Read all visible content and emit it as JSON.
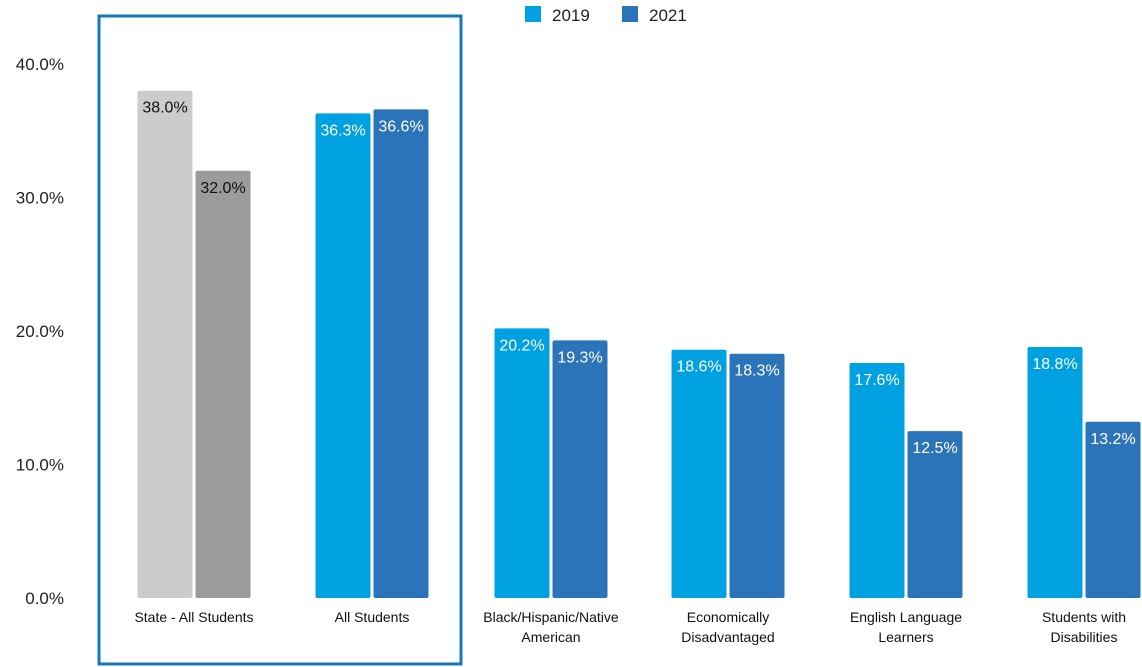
{
  "chart_data": {
    "type": "bar",
    "categories": [
      [
        "State - All Students"
      ],
      [
        "All Students"
      ],
      [
        "Black/Hispanic/Native",
        "American"
      ],
      [
        "Economically",
        "Disadvantaged"
      ],
      [
        "English Language",
        "Learners"
      ],
      [
        "Students with",
        "Disabilities"
      ]
    ],
    "series": [
      {
        "name": "2019",
        "values": [
          38.0,
          36.3,
          20.2,
          18.6,
          17.6,
          18.8
        ]
      },
      {
        "name": "2021",
        "values": [
          32.0,
          36.6,
          19.3,
          18.3,
          12.5,
          13.2
        ]
      }
    ],
    "data_labels": [
      [
        "38.0%",
        "36.3%",
        "20.2%",
        "18.6%",
        "17.6%",
        "18.8%"
      ],
      [
        "32.0%",
        "36.6%",
        "19.3%",
        "18.3%",
        "12.5%",
        "13.2%"
      ]
    ],
    "y_ticks": [
      "0.0%",
      "10.0%",
      "20.0%",
      "30.0%",
      "40.0%"
    ],
    "y_tick_values": [
      0,
      10,
      20,
      30,
      40
    ],
    "ylim": [
      0,
      40
    ],
    "title": "",
    "xlabel": "",
    "ylabel": "",
    "grid": false,
    "legend_position": "top-center",
    "highlight_box_categories": [
      0,
      1
    ],
    "colors": {
      "series_2019": "#00a1e0",
      "series_2021": "#2b74ba",
      "state_2019": "#cccccc",
      "state_2021": "#9b9b9b",
      "highlight_box": "#1578b8",
      "label_on_blue": "#ffffff",
      "label_on_gray": "#111111"
    }
  }
}
